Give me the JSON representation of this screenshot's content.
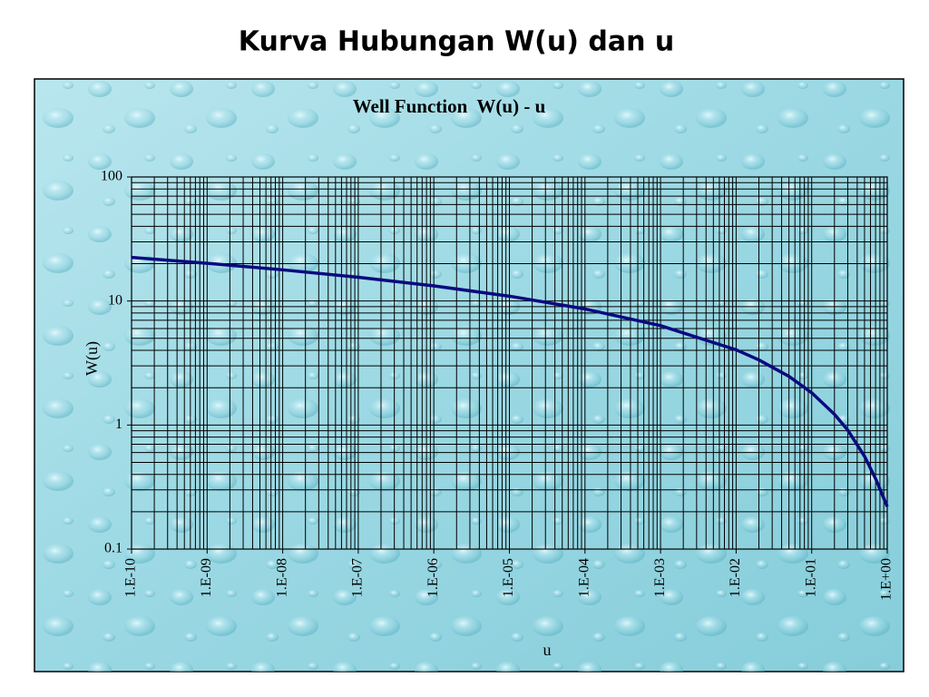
{
  "header": {
    "title": "Kurva Hubungan W(u) dan u"
  },
  "chart_data": {
    "type": "line",
    "title": "Well Function  W(u) - u",
    "x_label": "u",
    "y_label": "W(u)",
    "x": [
      1e-10,
      1e-09,
      1e-08,
      1e-07,
      1e-06,
      1e-05,
      0.0001,
      0.001,
      0.01,
      0.02,
      0.05,
      0.1,
      0.2,
      0.3,
      0.5,
      0.7,
      1
    ],
    "values": [
      22.45,
      20.15,
      17.84,
      15.54,
      13.24,
      10.94,
      8.63,
      6.33,
      4.04,
      3.35,
      2.47,
      1.82,
      1.22,
      0.91,
      0.56,
      0.37,
      0.22
    ],
    "color": "#0a0a80",
    "xscale": "log",
    "yscale": "log",
    "xlim": [
      1e-10,
      1
    ],
    "ylim": [
      0.1,
      100
    ],
    "xticks": [
      {
        "value": 1e-10,
        "label": "1.E-10"
      },
      {
        "value": 1e-09,
        "label": "1.E-09"
      },
      {
        "value": 1e-08,
        "label": "1.E-08"
      },
      {
        "value": 1e-07,
        "label": "1.E-07"
      },
      {
        "value": 1e-06,
        "label": "1.E-06"
      },
      {
        "value": 1e-05,
        "label": "1.E-05"
      },
      {
        "value": 0.0001,
        "label": "1.E-04"
      },
      {
        "value": 0.001,
        "label": "1.E-03"
      },
      {
        "value": 0.01,
        "label": "1.E-02"
      },
      {
        "value": 0.1,
        "label": "1.E-01"
      },
      {
        "value": 1,
        "label": "1.E+00"
      }
    ],
    "yticks": [
      0.1,
      1,
      10,
      100
    ],
    "grid": true,
    "minor_grid": true
  }
}
